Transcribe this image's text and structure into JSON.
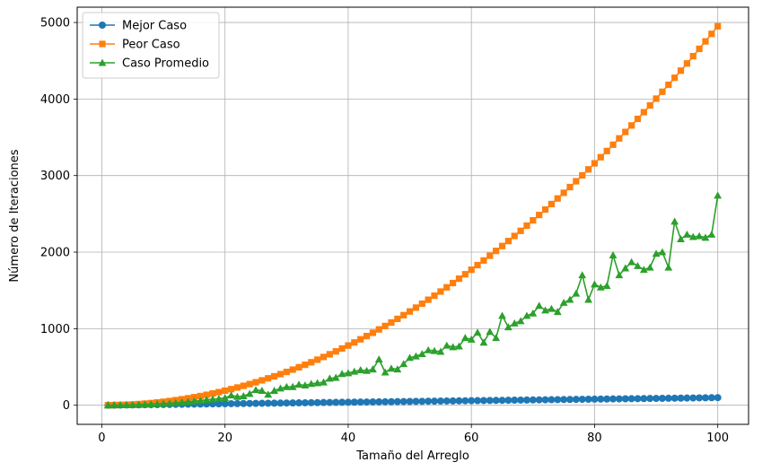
{
  "chart_data": {
    "type": "line",
    "title": "",
    "xlabel": "Tamaño del Arreglo",
    "ylabel": "Número de Iteraciones",
    "xlim": [
      -4,
      105
    ],
    "ylim": [
      -250,
      5200
    ],
    "xticks": [
      0,
      20,
      40,
      60,
      80,
      100
    ],
    "yticks": [
      0,
      1000,
      2000,
      3000,
      4000,
      5000
    ],
    "grid": true,
    "legend_position": "top-left",
    "x": [
      1,
      2,
      3,
      4,
      5,
      6,
      7,
      8,
      9,
      10,
      11,
      12,
      13,
      14,
      15,
      16,
      17,
      18,
      19,
      20,
      21,
      22,
      23,
      24,
      25,
      26,
      27,
      28,
      29,
      30,
      31,
      32,
      33,
      34,
      35,
      36,
      37,
      38,
      39,
      40,
      41,
      42,
      43,
      44,
      45,
      46,
      47,
      48,
      49,
      50,
      51,
      52,
      53,
      54,
      55,
      56,
      57,
      58,
      59,
      60,
      61,
      62,
      63,
      64,
      65,
      66,
      67,
      68,
      69,
      70,
      71,
      72,
      73,
      74,
      75,
      76,
      77,
      78,
      79,
      80,
      81,
      82,
      83,
      84,
      85,
      86,
      87,
      88,
      89,
      90,
      91,
      92,
      93,
      94,
      95,
      96,
      97,
      98,
      99,
      100
    ],
    "series": [
      {
        "name": "Mejor Caso",
        "color": "#1f77b4",
        "marker": "circle",
        "values": [
          0,
          1,
          2,
          3,
          4,
          5,
          6,
          7,
          8,
          9,
          10,
          11,
          12,
          13,
          14,
          15,
          16,
          17,
          18,
          19,
          20,
          21,
          22,
          23,
          24,
          25,
          26,
          27,
          28,
          29,
          30,
          31,
          32,
          33,
          34,
          35,
          36,
          37,
          38,
          39,
          40,
          41,
          42,
          43,
          44,
          45,
          46,
          47,
          48,
          49,
          50,
          51,
          52,
          53,
          54,
          55,
          56,
          57,
          58,
          59,
          60,
          61,
          62,
          63,
          64,
          65,
          66,
          67,
          68,
          69,
          70,
          71,
          72,
          73,
          74,
          75,
          76,
          77,
          78,
          79,
          80,
          81,
          82,
          83,
          84,
          85,
          86,
          87,
          88,
          89,
          90,
          91,
          92,
          93,
          94,
          95,
          96,
          97,
          98,
          99
        ]
      },
      {
        "name": "Peor Caso",
        "color": "#ff7f0e",
        "marker": "square",
        "values": [
          0,
          1,
          3,
          6,
          10,
          15,
          21,
          28,
          36,
          45,
          55,
          66,
          78,
          91,
          105,
          120,
          136,
          153,
          171,
          190,
          210,
          231,
          253,
          276,
          300,
          325,
          351,
          378,
          406,
          435,
          465,
          496,
          528,
          561,
          595,
          630,
          666,
          703,
          741,
          780,
          820,
          861,
          903,
          946,
          990,
          1035,
          1081,
          1128,
          1176,
          1225,
          1275,
          1326,
          1378,
          1431,
          1485,
          1540,
          1596,
          1653,
          1711,
          1770,
          1830,
          1891,
          1953,
          2016,
          2080,
          2145,
          2211,
          2278,
          2346,
          2415,
          2485,
          2556,
          2628,
          2701,
          2775,
          2850,
          2926,
          3003,
          3081,
          3160,
          3240,
          3321,
          3403,
          3486,
          3570,
          3655,
          3741,
          3828,
          3916,
          4005,
          4095,
          4186,
          4278,
          4371,
          4465,
          4560,
          4656,
          4753,
          4851,
          4950
        ]
      },
      {
        "name": "Caso Promedio",
        "color": "#2ca02c",
        "marker": "triangle",
        "values": [
          0,
          1,
          2,
          4,
          5,
          7,
          10,
          14,
          18,
          22,
          25,
          30,
          38,
          45,
          52,
          60,
          70,
          78,
          85,
          95,
          130,
          110,
          120,
          150,
          200,
          190,
          140,
          190,
          220,
          240,
          240,
          270,
          260,
          280,
          290,
          300,
          350,
          360,
          410,
          420,
          440,
          460,
          450,
          470,
          600,
          430,
          480,
          470,
          540,
          620,
          640,
          670,
          720,
          710,
          700,
          780,
          760,
          770,
          880,
          860,
          950,
          820,
          960,
          880,
          1170,
          1020,
          1070,
          1100,
          1170,
          1200,
          1300,
          1240,
          1260,
          1220,
          1340,
          1380,
          1460,
          1700,
          1380,
          1580,
          1540,
          1560,
          1960,
          1700,
          1790,
          1870,
          1820,
          1770,
          1800,
          1980,
          2000,
          1800,
          2400,
          2170,
          2230,
          2200,
          2210,
          2190,
          2230,
          2740
        ]
      }
    ]
  }
}
